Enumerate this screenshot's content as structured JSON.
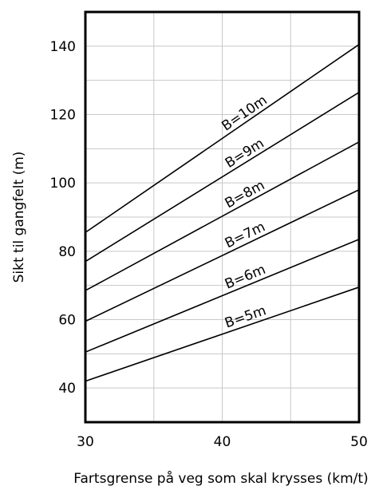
{
  "chart_data": {
    "type": "line",
    "title": "",
    "xlabel": "Fartsgrense på veg som skal krysses (km/t)",
    "ylabel": "Sikt til gangfelt (m)",
    "xlim": [
      30,
      50
    ],
    "ylim": [
      30,
      150
    ],
    "xticks": [
      "30",
      "40",
      "50"
    ],
    "yticks": [
      "40",
      "60",
      "80",
      "100",
      "120",
      "140"
    ],
    "grid": true,
    "x": [
      30,
      50
    ],
    "series": [
      {
        "name": "B=10m",
        "values": [
          85.5,
          140.5
        ]
      },
      {
        "name": "B=9m",
        "values": [
          77.0,
          126.5
        ]
      },
      {
        "name": "B=8m",
        "values": [
          68.5,
          112.0
        ]
      },
      {
        "name": "B=7m",
        "values": [
          59.5,
          98.0
        ]
      },
      {
        "name": "B=6m",
        "values": [
          50.5,
          83.5
        ]
      },
      {
        "name": "B=5m",
        "values": [
          42.0,
          69.5
        ]
      }
    ]
  }
}
